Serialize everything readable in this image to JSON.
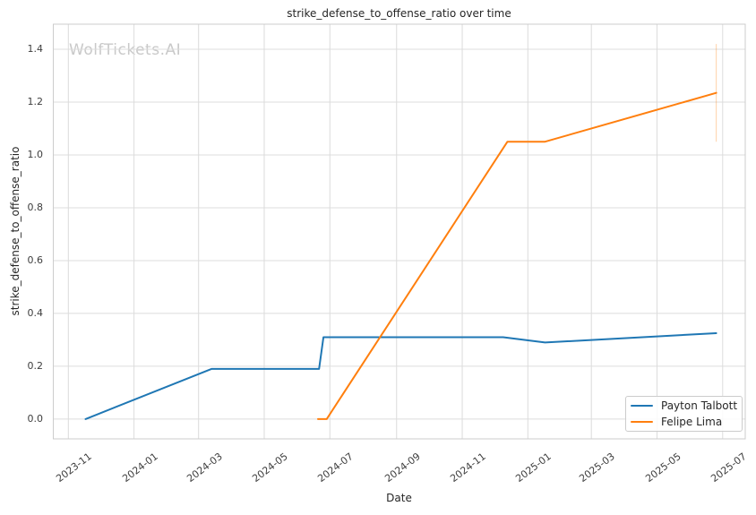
{
  "chart_data": {
    "type": "line",
    "title": "strike_defense_to_offense_ratio over time",
    "xlabel": "Date",
    "ylabel": "strike_defense_to_offense_ratio",
    "watermark": "WolfTickets.AI",
    "grid": true,
    "legend_position": "lower right",
    "xlim": [
      "2023-10-18",
      "2025-07-22"
    ],
    "ylim": [
      -0.075,
      1.495
    ],
    "x_ticks": [
      {
        "date": "2023-11-01",
        "label": "2023-11"
      },
      {
        "date": "2024-01-01",
        "label": "2024-01"
      },
      {
        "date": "2024-03-01",
        "label": "2024-03"
      },
      {
        "date": "2024-05-01",
        "label": "2024-05"
      },
      {
        "date": "2024-07-01",
        "label": "2024-07"
      },
      {
        "date": "2024-09-01",
        "label": "2024-09"
      },
      {
        "date": "2024-11-01",
        "label": "2024-11"
      },
      {
        "date": "2025-01-01",
        "label": "2025-01"
      },
      {
        "date": "2025-03-01",
        "label": "2025-03"
      },
      {
        "date": "2025-05-01",
        "label": "2025-05"
      },
      {
        "date": "2025-07-01",
        "label": "2025-07"
      }
    ],
    "y_ticks": [
      0.0,
      0.2,
      0.4,
      0.6,
      0.8,
      1.0,
      1.2,
      1.4
    ],
    "series": [
      {
        "name": "Payton Talbott",
        "color": "#1f77b4",
        "points": [
          [
            "2023-11-17",
            0.0
          ],
          [
            "2024-03-13",
            0.19
          ],
          [
            "2024-06-21",
            0.19
          ],
          [
            "2024-06-25",
            0.31
          ],
          [
            "2024-12-09",
            0.31
          ],
          [
            "2025-01-17",
            0.29
          ],
          [
            "2025-06-25",
            0.325
          ]
        ]
      },
      {
        "name": "Felipe Lima",
        "color": "#ff7f0e",
        "points": [
          [
            "2024-06-20",
            0.0
          ],
          [
            "2024-06-28",
            0.0
          ],
          [
            "2024-12-13",
            1.05
          ],
          [
            "2025-01-17",
            1.05
          ],
          [
            "2025-06-25",
            1.235
          ]
        ]
      }
    ],
    "error_bar": {
      "series": "Felipe Lima",
      "date": "2025-06-25",
      "low": 1.05,
      "high": 1.42,
      "color": "#ff7f0e",
      "opacity": 0.3
    },
    "colors": {
      "grid": "#dcdcdc",
      "spine": "#cccccc",
      "text": "#262626",
      "tick_text": "#3d3d3d",
      "watermark": "#c9c9c9",
      "background": "#ffffff"
    }
  }
}
